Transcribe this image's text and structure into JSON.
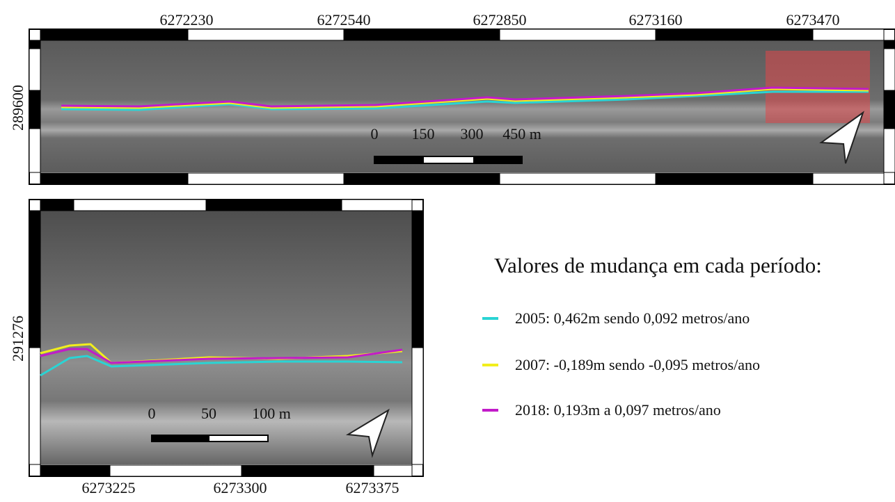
{
  "top_map": {
    "x_labels": [
      "6272230",
      "6272540",
      "6272850",
      "6273160",
      "6273470"
    ],
    "y_label": "289600",
    "scale_labels": [
      "0",
      "150",
      "300",
      "450 m"
    ]
  },
  "inset_map": {
    "x_labels": [
      "6273225",
      "6273300",
      "6273375"
    ],
    "y_label": "291276",
    "scale_labels": [
      "0",
      "50",
      "100 m"
    ]
  },
  "legend": {
    "title": "Valores de mudança em cada período:",
    "items": [
      {
        "label": "2005: 0,462m sendo 0,092 metros/ano",
        "color": "#2ad4d4"
      },
      {
        "label": "2007: -0,189m sendo -0,095 metros/ano",
        "color": "#f2ee1c"
      },
      {
        "label": "2018: 0,193m a 0,097 metros/ano",
        "color": "#c21bc9"
      }
    ]
  }
}
